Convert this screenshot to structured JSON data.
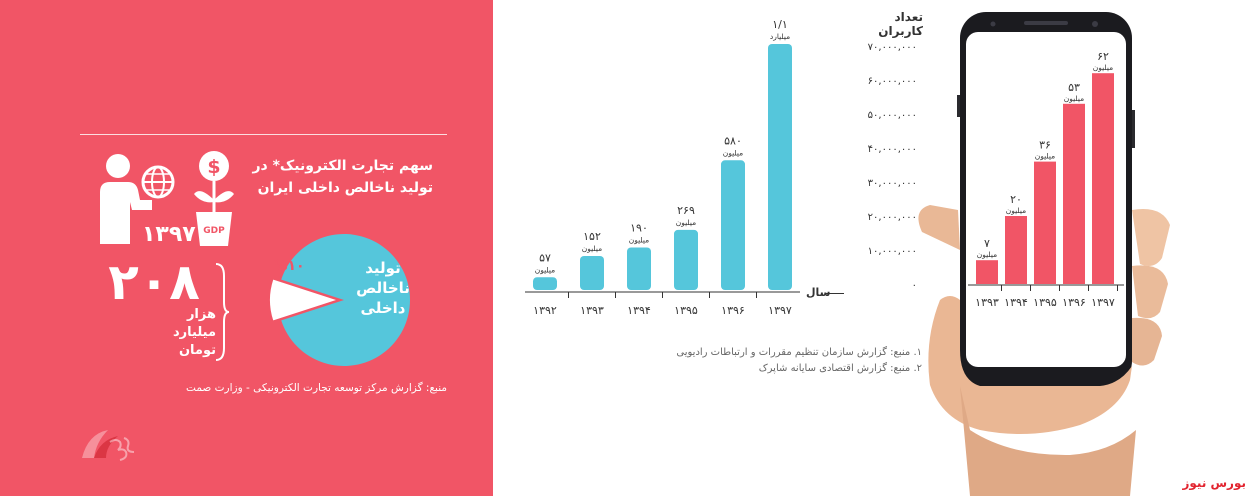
{
  "left_panel": {
    "title_line1": "سهم تجارت الکترونیک* در",
    "title_line2": "تولید ناخالص داخلی ایران",
    "year": "۱۳۹۷",
    "gdp_label": "GDP",
    "dollar_symbol": "$",
    "big_number": "۲۰۸",
    "unit_line1": "هزار",
    "unit_line2": "میلیارد",
    "unit_line3": "تومان",
    "pie_label_line1": "تولید",
    "pie_label_line2": "ناخالص",
    "pie_label_line3": "داخلی",
    "pie_percent": "%۱۰",
    "pie_fraction": 0.1,
    "source": "منبع: گزارش مرکز توسعه تجارت الکترونیکی - وزارت صمت",
    "colors": {
      "background": "#f15566",
      "pie": "#55c6db"
    }
  },
  "chart_data": [
    {
      "type": "bar",
      "title": "",
      "xlabel": "سال",
      "ylabel": "",
      "categories": [
        "۱۳۹۲",
        "۱۳۹۳",
        "۱۳۹۴",
        "۱۳۹۵",
        "۱۳۹۶",
        "۱۳۹۷"
      ],
      "values": [
        57,
        152,
        190,
        269,
        580,
        1100
      ],
      "value_labels": [
        "۵۷",
        "۱۵۲",
        "۱۹۰",
        "۲۶۹",
        "۵۸۰",
        "۱/۱"
      ],
      "unit_labels": [
        "میلیون",
        "میلیون",
        "میلیون",
        "میلیون",
        "میلیون",
        "میلیارد"
      ],
      "ylim": [
        0,
        1100
      ],
      "color": "#55c6db",
      "grid": false
    },
    {
      "type": "bar",
      "title": "",
      "xlabel": "",
      "ylabel": "تعداد کاربران",
      "categories": [
        "۱۳۹۳",
        "۱۳۹۴",
        "۱۳۹۵",
        "۱۳۹۶",
        "۱۳۹۷"
      ],
      "values": [
        7000000,
        20000000,
        36000000,
        53000000,
        62000000
      ],
      "value_labels": [
        "۷",
        "۲۰",
        "۳۶",
        "۵۳",
        "۶۲"
      ],
      "unit_labels": [
        "میلیون",
        "میلیون",
        "میلیون",
        "میلیون",
        "میلیون"
      ],
      "yticks": [
        0,
        10000000,
        20000000,
        30000000,
        40000000,
        50000000,
        60000000,
        70000000
      ],
      "ytick_labels": [
        "۰",
        "۱۰,۰۰۰,۰۰۰",
        "۲۰,۰۰۰,۰۰۰",
        "۳۰,۰۰۰,۰۰۰",
        "۴۰,۰۰۰,۰۰۰",
        "۵۰,۰۰۰,۰۰۰",
        "۶۰,۰۰۰,۰۰۰",
        "۷۰,۰۰۰,۰۰۰"
      ],
      "ylim": [
        0,
        70000000
      ],
      "color": "#f15566",
      "grid": false
    }
  ],
  "notes": {
    "note1": "۱. منبع: گزارش سازمان تنظیم مقررات و ارتباطات رادیویی",
    "note2": "۲. منبع: گزارش اقتصادی سایانه شاپرک"
  },
  "brand": "بورس نیوز"
}
